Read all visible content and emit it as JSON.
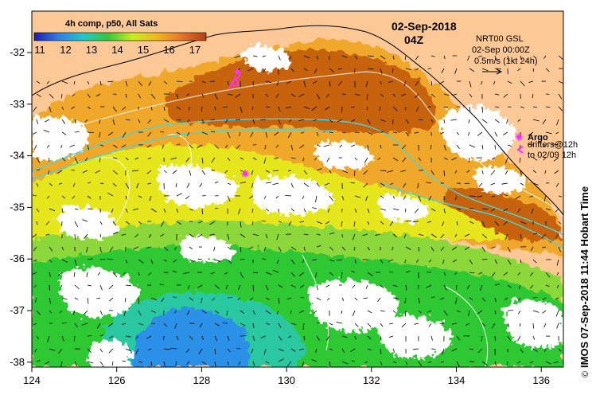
{
  "colorbar": {
    "title": "4h comp, p50, All Sats",
    "ticks": [
      "11",
      "12",
      "13",
      "14",
      "15",
      "16",
      "17"
    ],
    "colors": [
      "#1b1bb0",
      "#2f7fe8",
      "#22c8c8",
      "#35c83a",
      "#c8ee1e",
      "#f0b820",
      "#e8742a",
      "#b04016"
    ]
  },
  "header": {
    "date": "02-Sep-2018",
    "time": "04Z"
  },
  "legend": {
    "source": "NRT00 GSL",
    "valid": "02-Sep 00:00Z",
    "scale": "0.5m/s (1kt 24h)",
    "argo_label": "Argo",
    "drifters_line1": "drifters@12h",
    "drifters_line2": "to 02/09 12h",
    "argo_color": "#ff30ff"
  },
  "credit": "IMOS 07-Sep-2018 11:44 Hobart Time",
  "copyright": "©",
  "axes": {
    "x_ticks": [
      "124",
      "126",
      "128",
      "130",
      "132",
      "134",
      "136"
    ],
    "y_ticks": [
      "-32",
      "-33",
      "-34",
      "-35",
      "-36",
      "-37",
      "-38"
    ]
  },
  "colors": {
    "land": "#fcc896",
    "warm": "#c86410",
    "orange": "#f0a82a",
    "yellow": "#e6e61e",
    "lightgreen": "#8cd83a",
    "green": "#2ec832",
    "cyan": "#2cc8a0",
    "blue": "#2a90e8"
  }
}
